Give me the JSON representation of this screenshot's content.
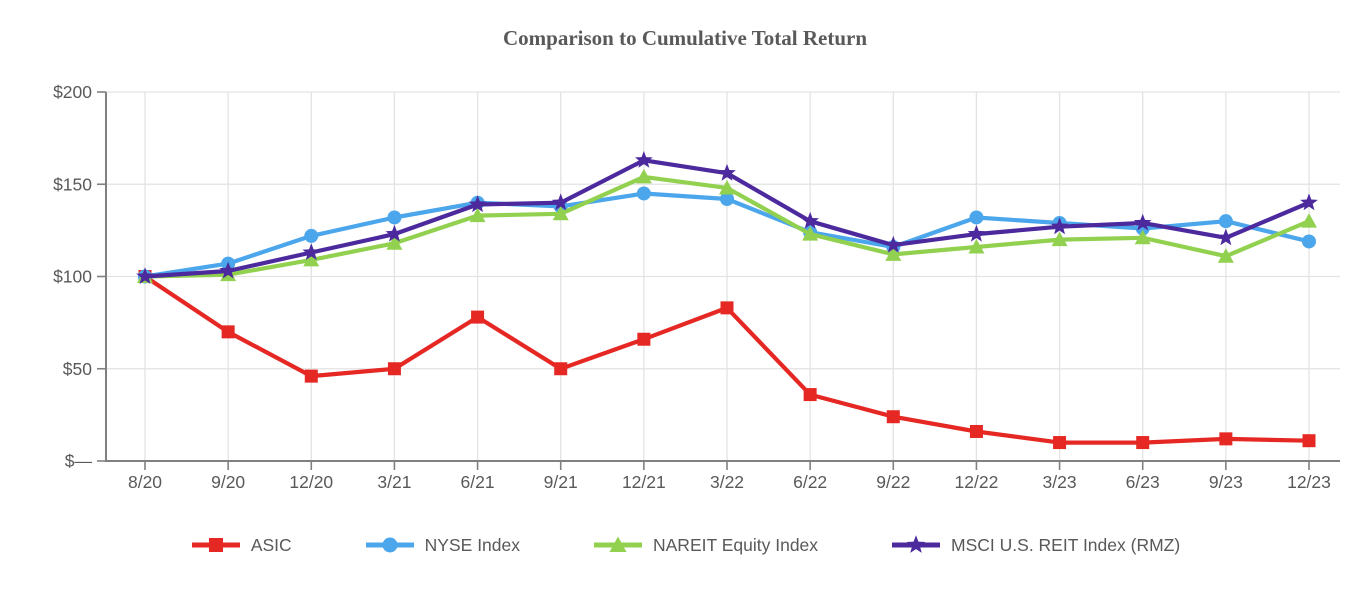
{
  "title": "Comparison to Cumulative Total Return",
  "colors": {
    "asic": "#e52823",
    "nyse": "#4ba6eb",
    "nareit": "#92d14f",
    "msci": "#4c2a9e",
    "axis": "#808080",
    "grid": "#e3e3e3",
    "text": "#595959"
  },
  "chart_data": {
    "type": "line",
    "title": "Comparison to Cumulative Total Return",
    "categories": [
      "8/20",
      "9/20",
      "12/20",
      "3/21",
      "6/21",
      "9/21",
      "12/21",
      "3/22",
      "6/22",
      "9/22",
      "12/22",
      "3/23",
      "6/23",
      "9/23",
      "12/23"
    ],
    "series": [
      {
        "name": "ASIC",
        "color": "#e52823",
        "marker": "square",
        "values": [
          100,
          70,
          46,
          50,
          78,
          50,
          66,
          83,
          36,
          24,
          16,
          10,
          10,
          12,
          11
        ]
      },
      {
        "name": "NYSE Index",
        "color": "#4ba6eb",
        "marker": "circle",
        "values": [
          100,
          107,
          122,
          132,
          140,
          138,
          145,
          142,
          124,
          116,
          132,
          129,
          126,
          130,
          119
        ]
      },
      {
        "name": "NAREIT Equity Index",
        "color": "#92d14f",
        "marker": "triangle",
        "values": [
          100,
          101,
          109,
          118,
          133,
          134,
          154,
          148,
          123,
          112,
          116,
          120,
          121,
          111,
          130
        ]
      },
      {
        "name": "MSCI U.S. REIT Index (RMZ)",
        "color": "#4c2a9e",
        "marker": "star",
        "values": [
          100,
          103,
          113,
          123,
          139,
          140,
          163,
          156,
          130,
          117,
          123,
          127,
          129,
          121,
          140
        ]
      }
    ],
    "xlabel": "",
    "ylabel": "",
    "y_ticks": [
      {
        "value": 200,
        "label": "$200"
      },
      {
        "value": 150,
        "label": "$150"
      },
      {
        "value": 100,
        "label": "$100"
      },
      {
        "value": 50,
        "label": "$50"
      },
      {
        "value": 0,
        "label": "$—"
      }
    ],
    "ylim": [
      0,
      200
    ],
    "grid": true,
    "legend_position": "bottom"
  }
}
